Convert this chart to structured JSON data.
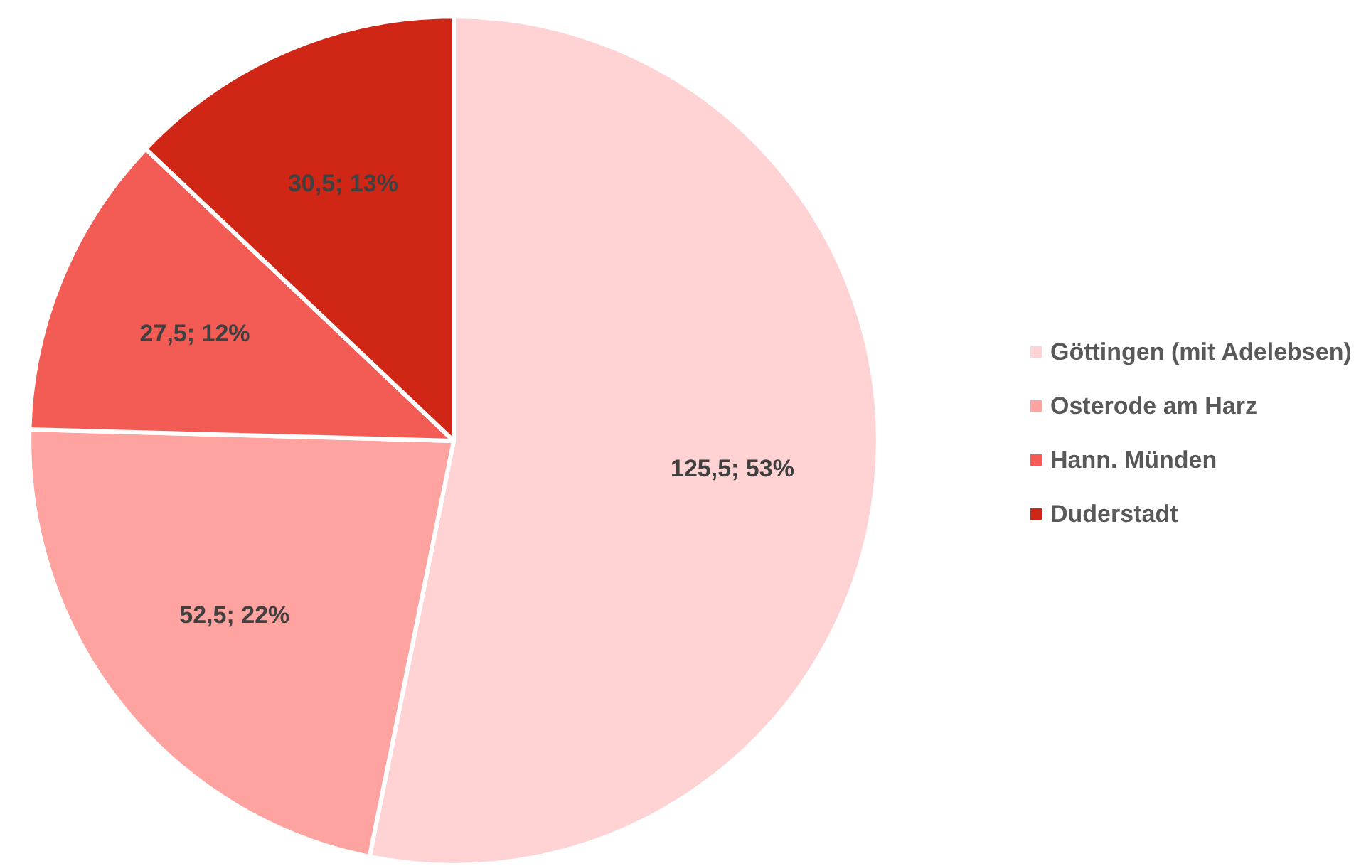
{
  "chart_data": {
    "type": "pie",
    "categories": [
      "Göttingen (mit Adelebsen)",
      "Osterode am Harz",
      "Hann. Münden",
      "Duderstadt"
    ],
    "values": [
      125.5,
      52.5,
      27.5,
      30.5
    ],
    "colors": [
      "#ffd3d3",
      "#ffa3a0",
      "#f25c55",
      "#d02616"
    ],
    "value_labels": [
      "125,5; 53%",
      "52,5; 22%",
      "27,5; 12%",
      "30,5; 13%"
    ],
    "legend": "right"
  }
}
